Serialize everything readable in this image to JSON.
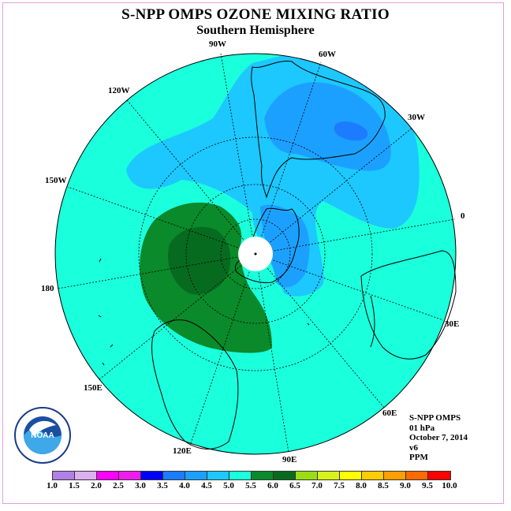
{
  "title": "S-NPP OMPS OZONE MIXING RATIO",
  "subtitle": "Southern Hemisphere",
  "map_labels": {
    "lon_90w": "90W",
    "lon_60w": "60W",
    "lon_120w": "120W",
    "lon_30w": "30W",
    "lon_150w": "150W",
    "lon_0": "0",
    "lon_180": "180",
    "lon_30e": "30E",
    "lon_150e": "150E",
    "lon_60e": "60E",
    "lon_120e": "120E",
    "lon_90e": "90E"
  },
  "info": {
    "instrument": "S-NPP OMPS",
    "level": "01 hPa",
    "date": "October 7, 2014",
    "version": "v6",
    "units": "PPM"
  },
  "logo_text": "NOAA",
  "colorbar": {
    "ticks": [
      "1.0",
      "1.5",
      "2.0",
      "2.5",
      "3.0",
      "3.5",
      "4.0",
      "4.5",
      "5.0",
      "5.5",
      "6.0",
      "6.5",
      "7.0",
      "7.5",
      "8.0",
      "8.5",
      "9.0",
      "9.5",
      "10.0"
    ],
    "colors": [
      "#b27fe6",
      "#dcb0f0",
      "#ff00ff",
      "#ee1cee",
      "#0000ff",
      "#1c7cff",
      "#1ca0ff",
      "#1cc8ff",
      "#1affdc",
      "#0a8a2a",
      "#076b1f",
      "#9add14",
      "#d8f21a",
      "#ffff00",
      "#ffcc00",
      "#ff9f00",
      "#ff6a00",
      "#ff0000",
      "#a0522d"
    ]
  }
}
